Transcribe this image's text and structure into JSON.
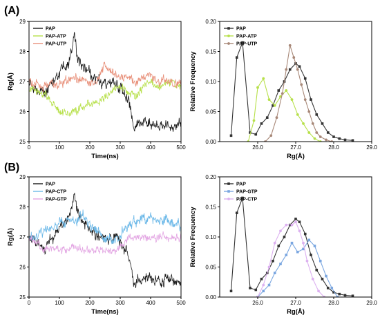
{
  "panels": [
    {
      "label": "(A)"
    },
    {
      "label": "(B)"
    }
  ],
  "chart_data": [
    {
      "type": "line",
      "panel": "A",
      "xlabel": "Time(ns)",
      "ylabel": "Rg(Å)",
      "xlim": [
        0,
        500
      ],
      "ylim": [
        25,
        29
      ],
      "xticks": [
        "0",
        "100",
        "200",
        "300",
        "400",
        "500"
      ],
      "yticks": [
        "25",
        "26",
        "27",
        "28",
        "29"
      ],
      "legend_position": "top-left",
      "series": [
        {
          "name": "PAP",
          "color": "#1a1a1a",
          "x": [
            0,
            25,
            50,
            75,
            100,
            125,
            140,
            150,
            160,
            175,
            200,
            225,
            250,
            275,
            300,
            320,
            335,
            345,
            360,
            380,
            400,
            425,
            450,
            475,
            500
          ],
          "y": [
            27.0,
            26.8,
            26.6,
            26.9,
            27.3,
            27.5,
            27.9,
            28.5,
            27.8,
            27.5,
            27.3,
            27.0,
            26.9,
            27.0,
            26.8,
            26.5,
            26.1,
            25.4,
            25.6,
            25.65,
            25.6,
            25.6,
            25.55,
            25.5,
            25.55
          ],
          "noise": 0.25
        },
        {
          "name": "PAP-ATP",
          "color": "#b7e04a",
          "x": [
            0,
            25,
            50,
            75,
            100,
            125,
            150,
            175,
            200,
            225,
            250,
            275,
            300,
            325,
            350,
            375,
            400,
            425,
            450,
            475,
            500
          ],
          "y": [
            26.8,
            26.7,
            26.6,
            26.3,
            26.0,
            25.9,
            26.0,
            26.2,
            26.2,
            26.3,
            26.5,
            26.7,
            26.8,
            26.6,
            26.5,
            26.8,
            27.0,
            26.8,
            26.9,
            27.0,
            26.8
          ],
          "noise": 0.18
        },
        {
          "name": "PAP-UTP",
          "color": "#e8907a",
          "x": [
            0,
            25,
            50,
            75,
            100,
            125,
            150,
            175,
            200,
            225,
            250,
            275,
            300,
            325,
            350,
            375,
            400,
            425,
            450,
            475,
            500
          ],
          "y": [
            27.0,
            26.9,
            26.8,
            27.0,
            26.9,
            27.0,
            27.1,
            27.0,
            26.9,
            27.0,
            27.6,
            27.3,
            27.1,
            27.2,
            26.9,
            27.1,
            27.2,
            27.0,
            27.1,
            26.9,
            27.0
          ],
          "noise": 0.2
        }
      ]
    },
    {
      "type": "line",
      "panel": "A",
      "xlabel": "Rg(Å)",
      "ylabel": "Relative Frequency",
      "xlim": [
        25.0,
        29.0
      ],
      "ylim": [
        0,
        0.2
      ],
      "xticks": [
        "26.0",
        "27.0",
        "28.0",
        "29.0"
      ],
      "yticks": [
        "0.00",
        "0.05",
        "0.10",
        "0.15",
        "0.20"
      ],
      "legend_position": "top-left",
      "series": [
        {
          "name": "PAP",
          "color": "#333333",
          "marker": "square",
          "x": [
            25.3,
            25.45,
            25.6,
            25.8,
            25.95,
            26.1,
            26.25,
            26.4,
            26.55,
            26.7,
            26.85,
            27.0,
            27.1,
            27.25,
            27.4,
            27.55,
            27.7,
            27.85,
            28.0,
            28.15,
            28.3,
            28.5
          ],
          "y": [
            0.01,
            0.14,
            0.165,
            0.015,
            0.012,
            0.03,
            0.04,
            0.06,
            0.085,
            0.1,
            0.12,
            0.13,
            0.125,
            0.105,
            0.07,
            0.045,
            0.03,
            0.015,
            0.008,
            0.005,
            0.003,
            0.002
          ]
        },
        {
          "name": "PAP-ATP",
          "color": "#b7e04a",
          "marker": "circle",
          "x": [
            25.75,
            25.9,
            26.0,
            26.15,
            26.3,
            26.45,
            26.6,
            26.75,
            26.9,
            27.05,
            27.2,
            27.35,
            27.5,
            27.65
          ],
          "y": [
            0.0,
            0.035,
            0.09,
            0.105,
            0.07,
            0.06,
            0.075,
            0.085,
            0.07,
            0.045,
            0.03,
            0.015,
            0.005,
            0.0
          ]
        },
        {
          "name": "PAP-UTP",
          "color": "#a88878",
          "marker": "circle",
          "x": [
            26.2,
            26.35,
            26.5,
            26.65,
            26.75,
            26.85,
            26.95,
            27.05,
            27.15,
            27.25,
            27.35,
            27.45,
            27.55,
            27.65,
            27.8,
            27.95
          ],
          "y": [
            0.0,
            0.01,
            0.04,
            0.08,
            0.12,
            0.16,
            0.14,
            0.12,
            0.095,
            0.07,
            0.05,
            0.03,
            0.015,
            0.008,
            0.003,
            0.0
          ]
        }
      ]
    },
    {
      "type": "line",
      "panel": "B",
      "xlabel": "Time(ns)",
      "ylabel": "Rg(Å)",
      "xlim": [
        0,
        500
      ],
      "ylim": [
        25,
        29
      ],
      "xticks": [
        "0",
        "100",
        "200",
        "300",
        "400",
        "500"
      ],
      "yticks": [
        "25",
        "26",
        "27",
        "28",
        "29"
      ],
      "legend_position": "top-left",
      "series": [
        {
          "name": "PAP",
          "color": "#1a1a1a",
          "x": [
            0,
            25,
            50,
            75,
            100,
            125,
            140,
            150,
            160,
            175,
            200,
            225,
            250,
            275,
            300,
            320,
            335,
            345,
            360,
            380,
            400,
            425,
            450,
            475,
            500
          ],
          "y": [
            27.0,
            26.8,
            26.6,
            26.9,
            27.3,
            27.5,
            27.9,
            28.5,
            27.8,
            27.5,
            27.3,
            27.0,
            26.9,
            27.0,
            26.8,
            26.5,
            26.1,
            25.4,
            25.6,
            25.65,
            25.6,
            25.6,
            25.55,
            25.5,
            25.55
          ],
          "noise": 0.25
        },
        {
          "name": "PAP-CTP",
          "color": "#6bb8e8",
          "x": [
            0,
            25,
            50,
            75,
            100,
            125,
            150,
            175,
            200,
            225,
            250,
            275,
            300,
            325,
            350,
            375,
            400,
            425,
            450,
            475,
            500
          ],
          "y": [
            26.9,
            27.0,
            27.2,
            27.3,
            27.4,
            27.6,
            27.5,
            27.7,
            27.4,
            27.2,
            27.0,
            26.9,
            27.1,
            27.4,
            27.5,
            27.6,
            27.7,
            27.5,
            27.6,
            27.4,
            27.4
          ],
          "noise": 0.22
        },
        {
          "name": "PAP-GTP",
          "color": "#e3a6e3",
          "x": [
            0,
            25,
            50,
            75,
            100,
            125,
            150,
            175,
            200,
            225,
            250,
            275,
            300,
            325,
            350,
            375,
            400,
            425,
            450,
            475,
            500
          ],
          "y": [
            26.9,
            26.8,
            26.6,
            26.6,
            26.6,
            26.6,
            26.7,
            26.6,
            26.5,
            26.6,
            26.5,
            26.5,
            26.7,
            26.9,
            27.0,
            27.0,
            26.9,
            27.0,
            27.0,
            26.9,
            27.0
          ],
          "noise": 0.17
        }
      ]
    },
    {
      "type": "line",
      "panel": "B",
      "xlabel": "Rg(Å)",
      "ylabel": "Relative Frequency",
      "xlim": [
        25.0,
        29.0
      ],
      "ylim": [
        0,
        0.2
      ],
      "xticks": [
        "26.0",
        "27.0",
        "28.0",
        "29.0"
      ],
      "yticks": [
        "0.00",
        "0.05",
        "0.10",
        "0.15",
        "0.20"
      ],
      "legend_position": "top-left",
      "series": [
        {
          "name": "PAP",
          "color": "#333333",
          "marker": "square",
          "x": [
            25.3,
            25.45,
            25.6,
            25.8,
            25.95,
            26.1,
            26.25,
            26.4,
            26.55,
            26.7,
            26.85,
            27.0,
            27.1,
            27.25,
            27.4,
            27.55,
            27.7,
            27.85,
            28.0,
            28.15,
            28.3,
            28.5
          ],
          "y": [
            0.01,
            0.14,
            0.165,
            0.015,
            0.012,
            0.03,
            0.04,
            0.06,
            0.085,
            0.1,
            0.12,
            0.13,
            0.125,
            0.105,
            0.07,
            0.045,
            0.03,
            0.015,
            0.008,
            0.005,
            0.003,
            0.002
          ]
        },
        {
          "name": "PAP-GTP",
          "color": "#7aa6e0",
          "marker": "square",
          "x": [
            26.0,
            26.15,
            26.3,
            26.45,
            26.6,
            26.75,
            26.9,
            27.05,
            27.2,
            27.35,
            27.5,
            27.65,
            27.8,
            27.95,
            28.1
          ],
          "y": [
            0.0,
            0.01,
            0.02,
            0.04,
            0.055,
            0.07,
            0.09,
            0.075,
            0.08,
            0.095,
            0.085,
            0.06,
            0.035,
            0.015,
            0.0
          ]
        },
        {
          "name": "PAP-CTP",
          "color": "#dcb0f0",
          "marker": "circle",
          "x": [
            26.0,
            26.15,
            26.3,
            26.45,
            26.6,
            26.75,
            26.9,
            27.0,
            27.1,
            27.2,
            27.3,
            27.45,
            27.6,
            27.75
          ],
          "y": [
            0.0,
            0.02,
            0.05,
            0.09,
            0.11,
            0.12,
            0.12,
            0.125,
            0.11,
            0.09,
            0.06,
            0.03,
            0.01,
            0.0
          ]
        }
      ]
    }
  ]
}
